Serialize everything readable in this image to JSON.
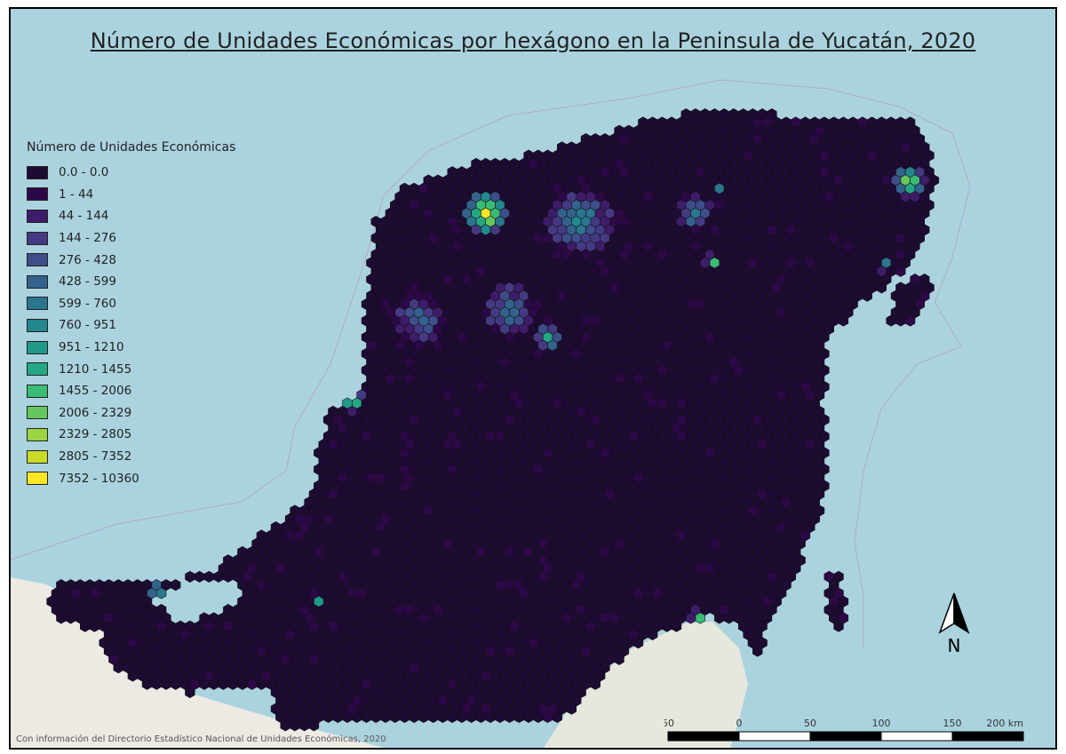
{
  "title": "Número de Unidades Económicas por hexágono en la Peninsula de Yucatán, 2020",
  "legend": {
    "title": "Número de Unidades Económicas",
    "classes": [
      {
        "label": "0.0 - 0.0",
        "color": "#1e0b33"
      },
      {
        "label": "1 - 44",
        "color": "#2d0848"
      },
      {
        "label": "44 - 144",
        "color": "#3e1c6a"
      },
      {
        "label": "144 - 276",
        "color": "#443a83"
      },
      {
        "label": "276 - 428",
        "color": "#3d4e8a"
      },
      {
        "label": "428 - 599",
        "color": "#33638d"
      },
      {
        "label": "599 - 760",
        "color": "#2b758e"
      },
      {
        "label": "760 - 951",
        "color": "#23888e"
      },
      {
        "label": "951 - 1210",
        "color": "#1f9a8a"
      },
      {
        "label": "1210 - 1455",
        "color": "#23a883"
      },
      {
        "label": "1455 - 2006",
        "color": "#3bbb75"
      },
      {
        "label": "2006 - 2329",
        "color": "#64c85f"
      },
      {
        "label": "2329 - 2805",
        "color": "#9bd342"
      },
      {
        "label": "2805 - 7352",
        "color": "#c9da29"
      },
      {
        "label": "7352 - 10360",
        "color": "#fde725"
      }
    ]
  },
  "north_arrow": {
    "label": "N"
  },
  "scale_bar": {
    "labels": [
      "50",
      "0",
      "50",
      "100",
      "150",
      "200 km"
    ]
  },
  "source": "Con información del Directorio Estadístico Nacional de Unidades Económicas, 2020",
  "colors": {
    "sea": "#abd3df",
    "land": "#eceae3",
    "hex_border": "#111111"
  }
}
